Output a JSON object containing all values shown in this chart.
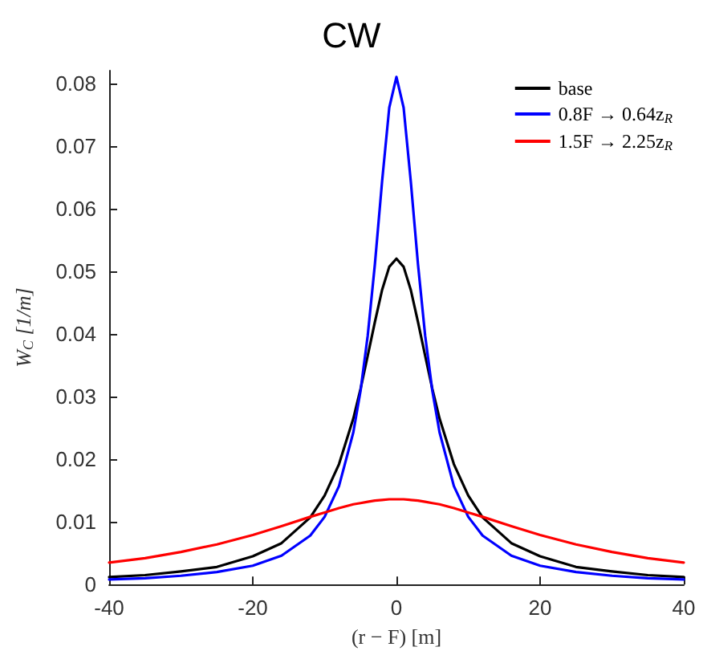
{
  "chart_data": {
    "type": "line",
    "title": "CW",
    "xlabel": "(r − F) [m]",
    "ylabel": "W$_{C}$ [1/m]",
    "x": [
      -40,
      -35,
      -30,
      -25,
      -20,
      -16,
      -12,
      -10,
      -8,
      -6,
      -5,
      -4,
      -3,
      -2,
      -1,
      0,
      1,
      2,
      3,
      4,
      5,
      6,
      8,
      10,
      12,
      16,
      20,
      25,
      30,
      35,
      40
    ],
    "series": [
      {
        "name": "base",
        "color": "#000000",
        "values": [
          0.0012,
          0.0015,
          0.0021,
          0.0028,
          0.0045,
          0.0066,
          0.0107,
          0.0142,
          0.0192,
          0.0265,
          0.0312,
          0.0365,
          0.0419,
          0.047,
          0.0507,
          0.052,
          0.0507,
          0.047,
          0.0419,
          0.0365,
          0.0312,
          0.0265,
          0.0192,
          0.0142,
          0.0107,
          0.0066,
          0.0045,
          0.0028,
          0.0021,
          0.0015,
          0.0012
        ]
      },
      {
        "name": "0.8F → 0.64z$_{R}$",
        "color": "#0000ff",
        "values": [
          0.0008,
          0.001,
          0.0014,
          0.002,
          0.003,
          0.0046,
          0.0078,
          0.0108,
          0.0157,
          0.0243,
          0.0309,
          0.0397,
          0.0511,
          0.0643,
          0.0761,
          0.081,
          0.0761,
          0.0643,
          0.0511,
          0.0397,
          0.0309,
          0.0243,
          0.0157,
          0.0108,
          0.0078,
          0.0046,
          0.003,
          0.002,
          0.0014,
          0.001,
          0.0008
        ]
      },
      {
        "name": "1.5F → 2.25z$_{R}$",
        "color": "#ff0000",
        "values": [
          0.0035,
          0.0042,
          0.0052,
          0.0064,
          0.0079,
          0.0093,
          0.0108,
          0.0115,
          0.0122,
          0.0128,
          0.013,
          0.0132,
          0.0134,
          0.0135,
          0.0136,
          0.0136,
          0.0136,
          0.0135,
          0.0134,
          0.0132,
          0.013,
          0.0128,
          0.0122,
          0.0115,
          0.0108,
          0.0093,
          0.0079,
          0.0064,
          0.0052,
          0.0042,
          0.0035
        ]
      }
    ],
    "xlim": [
      -40,
      40
    ],
    "xticks": [
      -40,
      -20,
      0,
      20,
      40
    ],
    "ylim": [
      0,
      0.082
    ],
    "yticks": [
      0,
      0.01,
      0.02,
      0.03,
      0.04,
      0.05,
      0.06,
      0.07,
      0.08
    ],
    "legend": "top right",
    "grid": false,
    "marker": "none",
    "line_style": "solid"
  }
}
